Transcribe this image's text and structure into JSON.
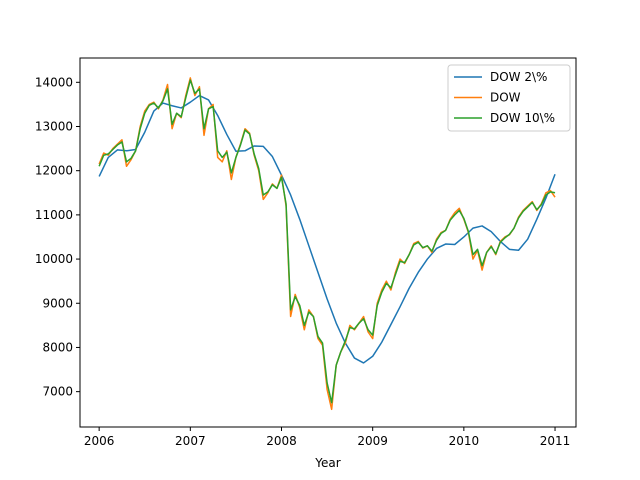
{
  "chart_data": {
    "type": "line",
    "title": "",
    "xlabel": "Year",
    "ylabel": "",
    "xlim": [
      2005.79,
      2011.23
    ],
    "ylim": [
      6200,
      14550
    ],
    "x_ticks": [
      "2006",
      "2007",
      "2008",
      "2009",
      "2010",
      "2011"
    ],
    "y_ticks": [
      "7000",
      "8000",
      "9000",
      "10000",
      "11000",
      "12000",
      "13000",
      "14000"
    ],
    "grid": false,
    "legend_position": "upper-right",
    "series": [
      {
        "name": "DOW 2\\%",
        "color": "#1f77b4",
        "x": [
          2006.0,
          2006.1,
          2006.2,
          2006.3,
          2006.4,
          2006.5,
          2006.6,
          2006.7,
          2006.8,
          2006.9,
          2007.0,
          2007.1,
          2007.2,
          2007.3,
          2007.4,
          2007.5,
          2007.6,
          2007.7,
          2007.8,
          2007.9,
          2008.0,
          2008.1,
          2008.2,
          2008.3,
          2008.4,
          2008.5,
          2008.6,
          2008.7,
          2008.8,
          2008.9,
          2009.0,
          2009.1,
          2009.2,
          2009.3,
          2009.4,
          2009.5,
          2009.6,
          2009.7,
          2009.8,
          2009.9,
          2010.0,
          2010.1,
          2010.2,
          2010.3,
          2010.4,
          2010.5,
          2010.6,
          2010.7,
          2010.8,
          2010.9,
          2011.0
        ],
        "y": [
          11870,
          12300,
          12470,
          12450,
          12480,
          12870,
          13350,
          13530,
          13470,
          13420,
          13550,
          13700,
          13600,
          13250,
          12820,
          12440,
          12450,
          12560,
          12550,
          12320,
          11900,
          11450,
          10900,
          10300,
          9700,
          9100,
          8550,
          8100,
          7760,
          7650,
          7800,
          8120,
          8520,
          8920,
          9340,
          9700,
          10000,
          10240,
          10340,
          10330,
          10500,
          10700,
          10750,
          10620,
          10400,
          10220,
          10200,
          10450,
          10900,
          11380,
          11920
        ]
      },
      {
        "name": "DOW",
        "color": "#ff7f0e",
        "x": [
          2006.0,
          2006.05,
          2006.1,
          2006.15,
          2006.2,
          2006.25,
          2006.3,
          2006.35,
          2006.4,
          2006.45,
          2006.5,
          2006.55,
          2006.6,
          2006.65,
          2006.7,
          2006.75,
          2006.8,
          2006.85,
          2006.9,
          2006.95,
          2007.0,
          2007.05,
          2007.1,
          2007.15,
          2007.2,
          2007.25,
          2007.3,
          2007.35,
          2007.4,
          2007.45,
          2007.5,
          2007.55,
          2007.6,
          2007.65,
          2007.7,
          2007.75,
          2007.8,
          2007.85,
          2007.9,
          2007.95,
          2008.0,
          2008.05,
          2008.1,
          2008.15,
          2008.2,
          2008.25,
          2008.3,
          2008.35,
          2008.4,
          2008.45,
          2008.5,
          2008.55,
          2008.6,
          2008.65,
          2008.7,
          2008.75,
          2008.8,
          2008.85,
          2008.9,
          2008.95,
          2009.0,
          2009.05,
          2009.1,
          2009.15,
          2009.2,
          2009.25,
          2009.3,
          2009.35,
          2009.4,
          2009.45,
          2009.5,
          2009.55,
          2009.6,
          2009.65,
          2009.7,
          2009.75,
          2009.8,
          2009.85,
          2009.9,
          2009.95,
          2010.0,
          2010.05,
          2010.1,
          2010.15,
          2010.2,
          2010.25,
          2010.3,
          2010.35,
          2010.4,
          2010.45,
          2010.5,
          2010.55,
          2010.6,
          2010.65,
          2010.7,
          2010.75,
          2010.8,
          2010.85,
          2010.9,
          2010.95,
          2011.0
        ],
        "y": [
          12150,
          12400,
          12350,
          12500,
          12600,
          12700,
          12100,
          12250,
          12450,
          13000,
          13350,
          13500,
          13550,
          13400,
          13600,
          13950,
          12950,
          13300,
          13200,
          13700,
          14100,
          13700,
          13900,
          12800,
          13400,
          13500,
          12300,
          12200,
          12450,
          11800,
          12300,
          12600,
          12950,
          12850,
          12350,
          12000,
          11350,
          11500,
          11700,
          11600,
          11900,
          11200,
          8700,
          9200,
          8900,
          8400,
          8850,
          8700,
          8200,
          8050,
          7050,
          6600,
          7600,
          7900,
          8100,
          8500,
          8400,
          8550,
          8700,
          8350,
          8200,
          9000,
          9300,
          9500,
          9300,
          9700,
          10000,
          9900,
          10100,
          10350,
          10400,
          10250,
          10300,
          10150,
          10450,
          10600,
          10650,
          10900,
          11050,
          11150,
          10900,
          10600,
          10000,
          10200,
          9750,
          10150,
          10300,
          10100,
          10400,
          10500,
          10550,
          10700,
          10950,
          11100,
          11200,
          11300,
          11100,
          11250,
          11500,
          11550,
          11400
        ]
      },
      {
        "name": "DOW 10\\%",
        "color": "#2ca02c",
        "x": [
          2006.0,
          2006.05,
          2006.1,
          2006.15,
          2006.2,
          2006.25,
          2006.3,
          2006.35,
          2006.4,
          2006.45,
          2006.5,
          2006.55,
          2006.6,
          2006.65,
          2006.7,
          2006.75,
          2006.8,
          2006.85,
          2006.9,
          2006.95,
          2007.0,
          2007.05,
          2007.1,
          2007.15,
          2007.2,
          2007.25,
          2007.3,
          2007.35,
          2007.4,
          2007.45,
          2007.5,
          2007.55,
          2007.6,
          2007.65,
          2007.7,
          2007.75,
          2007.8,
          2007.85,
          2007.9,
          2007.95,
          2008.0,
          2008.05,
          2008.1,
          2008.15,
          2008.2,
          2008.25,
          2008.3,
          2008.35,
          2008.4,
          2008.45,
          2008.5,
          2008.55,
          2008.6,
          2008.65,
          2008.7,
          2008.75,
          2008.8,
          2008.85,
          2008.9,
          2008.95,
          2009.0,
          2009.05,
          2009.1,
          2009.15,
          2009.2,
          2009.25,
          2009.3,
          2009.35,
          2009.4,
          2009.45,
          2009.5,
          2009.55,
          2009.6,
          2009.65,
          2009.7,
          2009.75,
          2009.8,
          2009.85,
          2009.9,
          2009.95,
          2010.0,
          2010.05,
          2010.1,
          2010.15,
          2010.2,
          2010.25,
          2010.3,
          2010.35,
          2010.4,
          2010.45,
          2010.5,
          2010.55,
          2010.6,
          2010.65,
          2010.7,
          2010.75,
          2010.8,
          2010.85,
          2010.9,
          2010.95,
          2011.0
        ],
        "y": [
          12100,
          12350,
          12380,
          12480,
          12580,
          12650,
          12200,
          12280,
          12450,
          12950,
          13300,
          13480,
          13530,
          13420,
          13580,
          13850,
          13050,
          13300,
          13220,
          13650,
          14050,
          13750,
          13850,
          12950,
          13400,
          13450,
          12450,
          12300,
          12420,
          11950,
          12300,
          12580,
          12920,
          12830,
          12380,
          12050,
          11450,
          11520,
          11680,
          11600,
          11850,
          11250,
          8850,
          9150,
          8950,
          8500,
          8800,
          8700,
          8250,
          8100,
          7200,
          6750,
          7600,
          7900,
          8150,
          8450,
          8420,
          8550,
          8650,
          8400,
          8280,
          8950,
          9250,
          9450,
          9350,
          9650,
          9950,
          9920,
          10100,
          10320,
          10380,
          10260,
          10300,
          10180,
          10420,
          10580,
          10650,
          10880,
          11000,
          11100,
          10920,
          10620,
          10100,
          10220,
          9850,
          10150,
          10280,
          10120,
          10380,
          10480,
          10560,
          10700,
          10930,
          11080,
          11180,
          11280,
          11120,
          11230,
          11450,
          11520,
          11500
        ]
      }
    ]
  }
}
